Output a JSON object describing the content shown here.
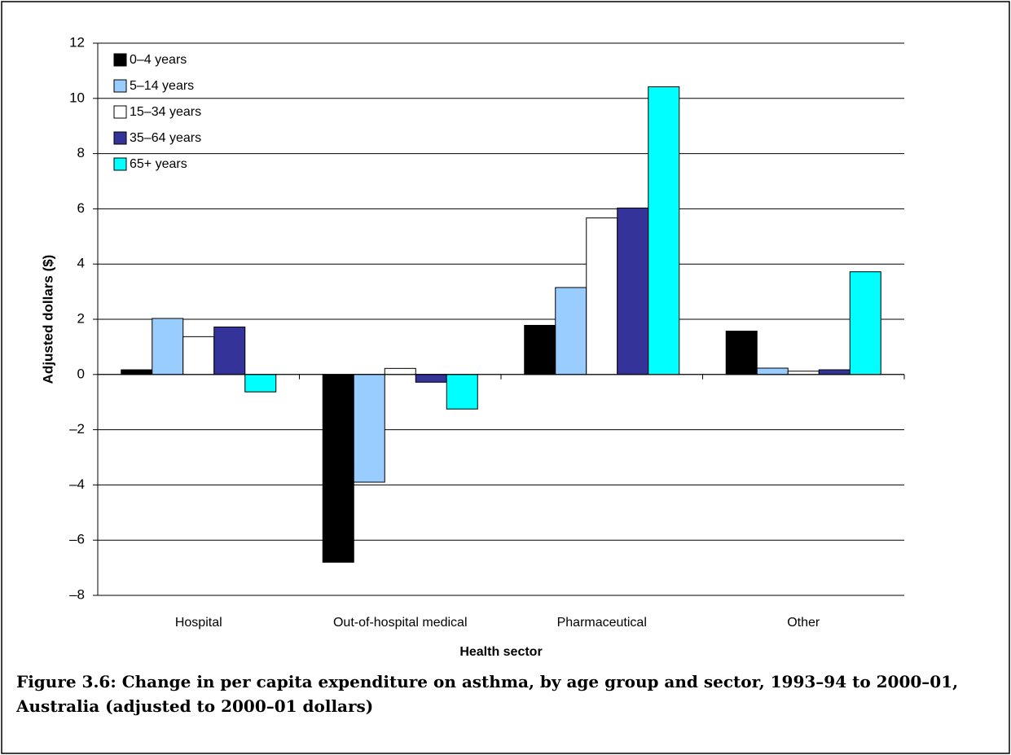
{
  "chart_data": {
    "type": "bar",
    "categories": [
      "Hospital",
      "Out-of-hospital medical",
      "Pharmaceutical",
      "Other"
    ],
    "series": [
      {
        "name": "0–4 years",
        "color": "#000000",
        "values": [
          0.17,
          -6.8,
          1.78,
          1.57
        ]
      },
      {
        "name": "5–14 years",
        "color": "#99ccff",
        "values": [
          2.03,
          -3.9,
          3.15,
          0.23
        ]
      },
      {
        "name": "15–34 years",
        "color": "#ffffff",
        "values": [
          1.37,
          0.22,
          5.67,
          0.12
        ]
      },
      {
        "name": "35–64 years",
        "color": "#333399",
        "values": [
          1.72,
          -0.28,
          6.03,
          0.17
        ]
      },
      {
        "name": "65+ years",
        "color": "#00ffff",
        "values": [
          -0.63,
          -1.25,
          10.42,
          3.72
        ]
      }
    ],
    "ylim": [
      -8,
      12
    ],
    "yticks": [
      {
        "value": -8,
        "label": "–8"
      },
      {
        "value": -6,
        "label": "–6"
      },
      {
        "value": -4,
        "label": "–4"
      },
      {
        "value": -2,
        "label": "–2"
      },
      0,
      2,
      4,
      6,
      8,
      10,
      12
    ],
    "y_label": "Adjusted dollars ($)",
    "x_label": "Health sector",
    "grid": true,
    "legend": "upper-left",
    "caption": "Figure 3.6: Change in per capita expenditure on asthma, by age group and sector, 1993–94 to 2000–01, Australia (adjusted to 2000–01 dollars)"
  }
}
